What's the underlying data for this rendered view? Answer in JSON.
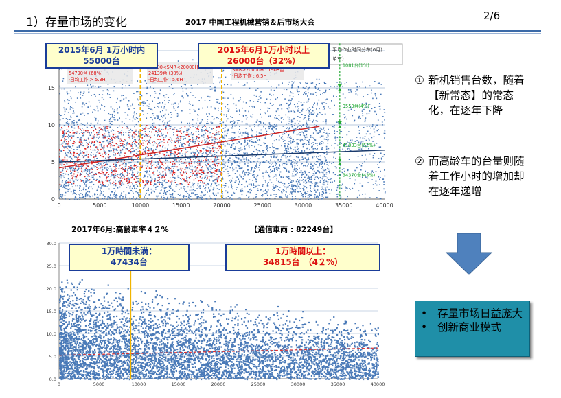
{
  "header": {
    "slide_title": "1）存量市场的变化",
    "conference": "2017 中国工程机械营销＆后市场大会",
    "page": "2/6"
  },
  "chart_data": [
    {
      "type": "scatter",
      "title": "",
      "xlabel": "",
      "ylabel": "",
      "xlim": [
        0,
        40000
      ],
      "ylim": [
        0,
        20
      ],
      "x_ticks": [
        "0",
        "5000",
        "10000",
        "15000",
        "20000",
        "25000",
        "30000",
        "35000",
        "40000"
      ],
      "y_ticks": [
        "0",
        "5",
        "10",
        "15",
        "20"
      ],
      "grid": "horizontal",
      "dashed_vlines_x": [
        10000,
        20000
      ],
      "series": [
        {
          "color": "#4a7ab8",
          "points": "dense cloud x 0-33000, y 0-20, sparse points to 40000"
        },
        {
          "color": "#dd2222",
          "points": "cluster x 0-20000, y 2-10"
        }
      ],
      "trendlines": [
        {
          "color": "#cc2222",
          "x": [
            0,
            32000
          ],
          "y": [
            4.2,
            9.8
          ]
        },
        {
          "color": "#1a3a6b",
          "x": [
            0,
            40000
          ],
          "y": [
            5.0,
            6.6
          ]
        }
      ],
      "header_labels": {
        "partial": "平均作业时间分布(6月)",
        "partial2": "单车)"
      },
      "annotations": [
        {
          "lines": [
            "SMR<10000H:",
            "54790台 (68%)",
            "·日均工作 > 5.3H"
          ]
        },
        {
          "lines": [
            "10000<SMR<20000H",
            "24139台 (30%)",
            "·日均工作 : 5.6H"
          ]
        },
        {
          "lines": [
            "SMR>20000H : 1908台",
            "·日均工作 : 6.5H"
          ]
        }
      ],
      "green_labels": [
        {
          "text": "1081台(1%)",
          "y": 18
        },
        {
          "text": "3553台(4%)",
          "y": 12.5
        },
        {
          "text": "41033台(52%)",
          "y": 7.2
        },
        {
          "text": "34370台(43%)",
          "y": 3.2
        }
      ],
      "green_boundaries_y": [
        15,
        10,
        5
      ]
    },
    {
      "type": "scatter",
      "title": "",
      "xlabel": "",
      "ylabel": "",
      "xlim": [
        0,
        40000
      ],
      "ylim": [
        0,
        30
      ],
      "x_ticks": [
        "0",
        "5000",
        "10000",
        "15000",
        "20000",
        "25000",
        "30000",
        "35000",
        "40000"
      ],
      "y_ticks": [
        "0.0",
        "5.0",
        "10.0",
        "15.0",
        "20.0",
        "25.0",
        "30.0"
      ],
      "grid": "horizontal",
      "vline_x": 9000,
      "series": [
        {
          "color": "#4a7ab8",
          "points": "dense cloud x 0-40000, y 0-23, density decreasing with x"
        }
      ],
      "trendlines": [
        {
          "color": "#dd3333",
          "style": "dashed",
          "x": [
            0,
            40000
          ],
          "y": [
            5.2,
            6.8
          ]
        }
      ]
    }
  ],
  "middle": {
    "left_label": "2017年6月:高齢車率４２%",
    "right_label": "【通信車両 : 82249台】"
  },
  "callouts": {
    "top_left": {
      "line1": "2015年6月 1万小时内",
      "line2": "55000台"
    },
    "top_right": {
      "line1": "2015年6月1万小时以上",
      "line2": "26000台（32%）"
    },
    "bottom_left": {
      "line1": "1万時間未満：",
      "line2": "47434台"
    },
    "bottom_right": {
      "line1": "1万時間以上：",
      "line2": "34815台　（4２%）"
    }
  },
  "notes": [
    {
      "marker": "①",
      "text": "新机销售台数，随着【新常态】的常态化，在逐年下降"
    },
    {
      "marker": "②",
      "text": "而高龄车的台量则随着工作小时的增加却在逐年递增"
    }
  ],
  "summary_box": {
    "bullets": [
      "存量市场日益庞大",
      "创新商业模式"
    ]
  },
  "colors": {
    "rule": "#3b6aa8",
    "point": "#4a7ab8",
    "red_point": "#dd2222",
    "callout_bg": "#ffffcc",
    "arrow": "#4f81bd",
    "box": "#1f8fa8"
  }
}
